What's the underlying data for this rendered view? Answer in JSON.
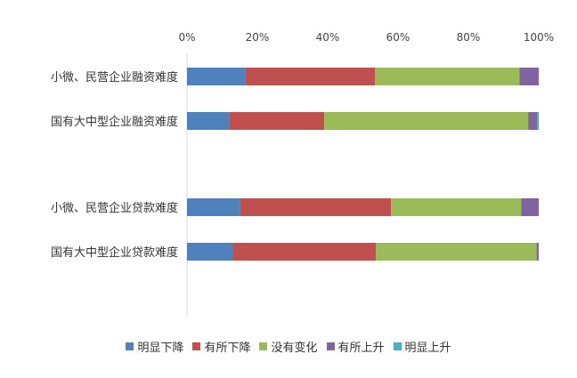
{
  "chart_data": {
    "type": "bar",
    "orientation": "horizontal",
    "stacked": true,
    "normalized": true,
    "categories": [
      "小微、民营企业融资难度",
      "国有大中型企业融资难度",
      "小微、民营企业贷款难度",
      "国有大中型企业贷款难度"
    ],
    "xticks": [
      "0%",
      "20%",
      "40%",
      "60%",
      "80%",
      "100%"
    ],
    "xlim": [
      0,
      100
    ],
    "x_axis_position": "top",
    "grid": false,
    "legend_position": "bottom",
    "series": [
      {
        "name": "明显下降",
        "color": "#4f81bd",
        "values": [
          16.5,
          12,
          15,
          13
        ]
      },
      {
        "name": "有所下降",
        "color": "#c0504d",
        "values": [
          37,
          27,
          43,
          41
        ]
      },
      {
        "name": "没有变化",
        "color": "#9bbb59",
        "values": [
          41,
          58,
          37,
          46
        ]
      },
      {
        "name": "有所上升",
        "color": "#8064a2",
        "values": [
          5.5,
          2.5,
          5,
          0.6
        ]
      },
      {
        "name": "明显上升",
        "color": "#4bacc6",
        "values": [
          0,
          0.5,
          0,
          0
        ]
      }
    ]
  }
}
